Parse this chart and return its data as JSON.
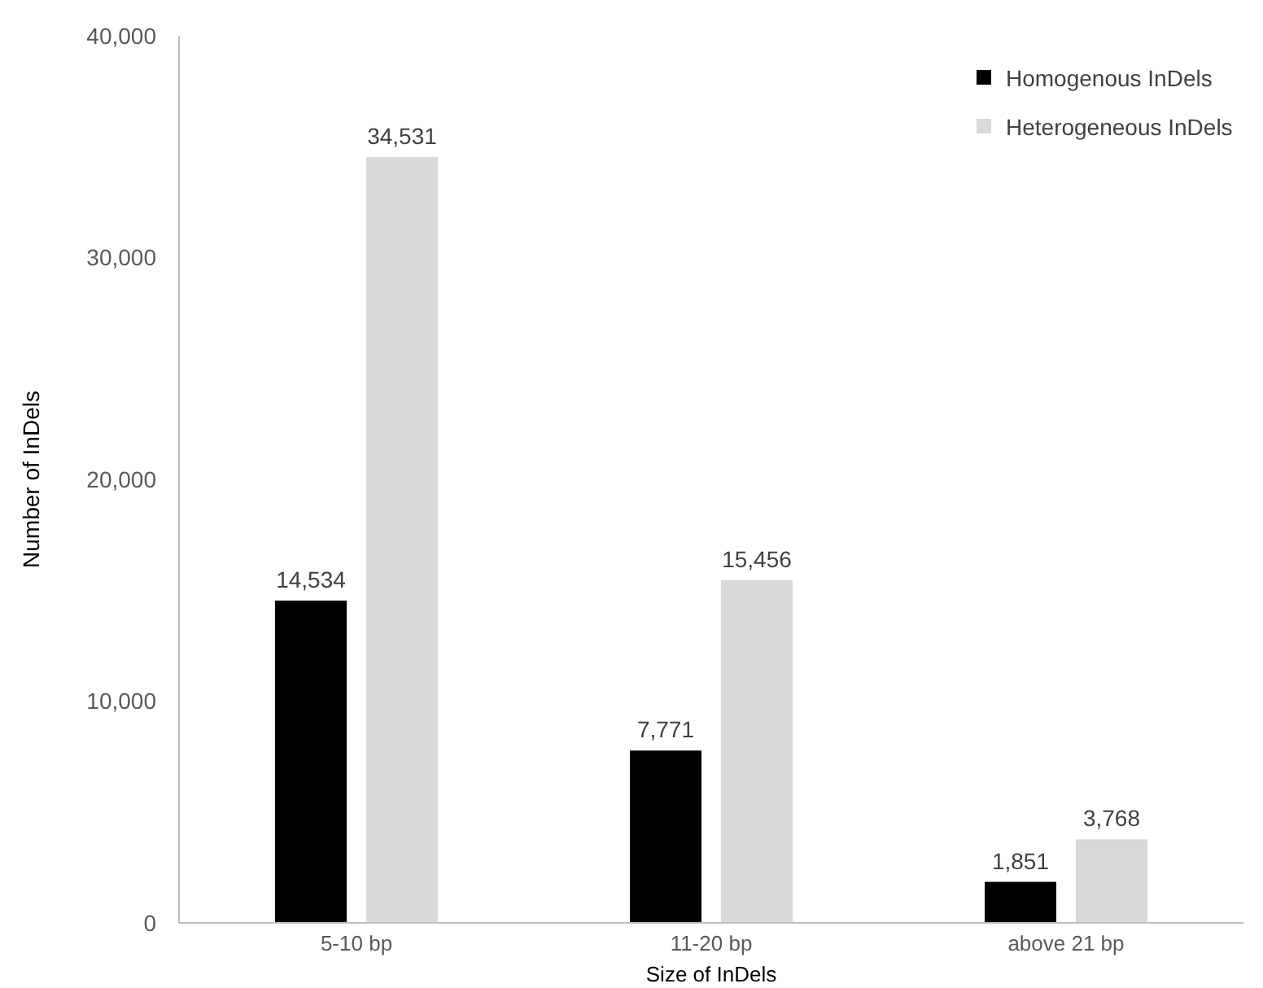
{
  "chart_data": {
    "type": "bar",
    "xlabel": "Size of InDels",
    "ylabel": "Number of InDels",
    "categories": [
      "5-10 bp",
      "11-20 bp",
      "above 21 bp"
    ],
    "series": [
      {
        "name": "Homogenous InDels",
        "color": "#000000",
        "values": [
          14534,
          7771,
          1851
        ],
        "value_labels": [
          "14,534",
          "7,771",
          "1,851"
        ]
      },
      {
        "name": "Heterogeneous InDels",
        "color": "#d9d9d9",
        "values": [
          34531,
          15456,
          3768
        ],
        "value_labels": [
          "34,531",
          "15,456",
          "3,768"
        ]
      }
    ],
    "ylim": [
      0,
      40000
    ],
    "yticks": [
      {
        "value": 0,
        "label": "0"
      },
      {
        "value": 10000,
        "label": "10,000"
      },
      {
        "value": 20000,
        "label": "20,000"
      },
      {
        "value": 30000,
        "label": "30,000"
      },
      {
        "value": 40000,
        "label": "40,000"
      }
    ],
    "grid": false,
    "legend": "top right"
  }
}
